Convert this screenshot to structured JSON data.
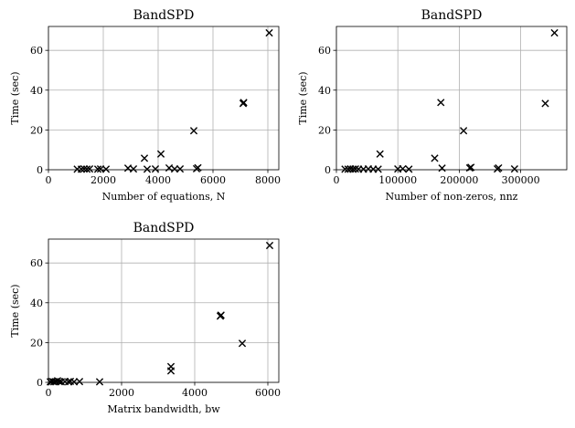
{
  "chart_data": [
    {
      "type": "scatter",
      "title": "BandSPD",
      "xlabel": "Number of equations, N",
      "ylabel": "Time (sec)",
      "xlim": [
        0,
        8400
      ],
      "ylim": [
        0,
        72
      ],
      "xticks": [
        0,
        2000,
        4000,
        6000,
        8000
      ],
      "xtick_labels": [
        "0",
        "2000",
        "4000",
        "6000",
        "8000"
      ],
      "yticks": [
        0,
        20,
        40,
        60
      ],
      "ytick_labels": [
        "0",
        "20",
        "40",
        "60"
      ],
      "grid": true,
      "marker": "x",
      "points": [
        {
          "x": 1050,
          "y": 0.3
        },
        {
          "x": 1200,
          "y": 0.3
        },
        {
          "x": 1300,
          "y": 0.4
        },
        {
          "x": 1400,
          "y": 0.3
        },
        {
          "x": 1500,
          "y": 0.4
        },
        {
          "x": 1800,
          "y": 0.3
        },
        {
          "x": 1900,
          "y": 0.4
        },
        {
          "x": 2100,
          "y": 0.3
        },
        {
          "x": 2900,
          "y": 0.8
        },
        {
          "x": 3100,
          "y": 0.4
        },
        {
          "x": 3500,
          "y": 5.8
        },
        {
          "x": 3600,
          "y": 0.3
        },
        {
          "x": 3900,
          "y": 0.4
        },
        {
          "x": 4100,
          "y": 7.9
        },
        {
          "x": 4400,
          "y": 0.9
        },
        {
          "x": 4600,
          "y": 0.4
        },
        {
          "x": 4800,
          "y": 0.4
        },
        {
          "x": 5300,
          "y": 19.6
        },
        {
          "x": 5400,
          "y": 0.5
        },
        {
          "x": 5450,
          "y": 1.0
        },
        {
          "x": 7100,
          "y": 33.3
        },
        {
          "x": 7120,
          "y": 33.8
        },
        {
          "x": 8050,
          "y": 68.8
        }
      ]
    },
    {
      "type": "scatter",
      "title": "BandSPD",
      "xlabel": "Number of non-zeros, nnz",
      "ylabel": "Time (sec)",
      "xlim": [
        0,
        375000
      ],
      "ylim": [
        0,
        72
      ],
      "xticks": [
        0,
        100000,
        200000,
        300000
      ],
      "xtick_labels": [
        "0",
        "100000",
        "200000",
        "300000"
      ],
      "yticks": [
        0,
        20,
        40,
        60
      ],
      "ytick_labels": [
        "0",
        "20",
        "40",
        "60"
      ],
      "grid": true,
      "marker": "x",
      "points": [
        {
          "x": 14000,
          "y": 0.3
        },
        {
          "x": 19000,
          "y": 0.3
        },
        {
          "x": 23000,
          "y": 0.4
        },
        {
          "x": 27000,
          "y": 0.3
        },
        {
          "x": 31000,
          "y": 0.4
        },
        {
          "x": 36000,
          "y": 0.3
        },
        {
          "x": 44000,
          "y": 0.3
        },
        {
          "x": 52000,
          "y": 0.4
        },
        {
          "x": 60000,
          "y": 0.3
        },
        {
          "x": 68000,
          "y": 0.3
        },
        {
          "x": 71000,
          "y": 7.9
        },
        {
          "x": 100000,
          "y": 0.4
        },
        {
          "x": 108000,
          "y": 0.5
        },
        {
          "x": 118000,
          "y": 0.3
        },
        {
          "x": 160000,
          "y": 5.8
        },
        {
          "x": 170000,
          "y": 33.8
        },
        {
          "x": 172000,
          "y": 0.8
        },
        {
          "x": 207000,
          "y": 19.6
        },
        {
          "x": 217000,
          "y": 0.9
        },
        {
          "x": 219000,
          "y": 1.2
        },
        {
          "x": 262000,
          "y": 0.4
        },
        {
          "x": 264000,
          "y": 0.9
        },
        {
          "x": 290000,
          "y": 0.4
        },
        {
          "x": 340000,
          "y": 33.3
        },
        {
          "x": 355000,
          "y": 68.8
        }
      ]
    },
    {
      "type": "scatter",
      "title": "BandSPD",
      "xlabel": "Matrix bandwidth, bw",
      "ylabel": "Time (sec)",
      "xlim": [
        0,
        6300
      ],
      "ylim": [
        0,
        72
      ],
      "xticks": [
        0,
        2000,
        4000,
        6000
      ],
      "xtick_labels": [
        "0",
        "2000",
        "4000",
        "6000"
      ],
      "yticks": [
        0,
        20,
        40,
        60
      ],
      "ytick_labels": [
        "0",
        "20",
        "40",
        "60"
      ],
      "grid": true,
      "marker": "x",
      "points": [
        {
          "x": 50,
          "y": 0.3
        },
        {
          "x": 100,
          "y": 0.5
        },
        {
          "x": 150,
          "y": 0.3
        },
        {
          "x": 200,
          "y": 0.4
        },
        {
          "x": 250,
          "y": 0.8
        },
        {
          "x": 300,
          "y": 0.4
        },
        {
          "x": 350,
          "y": 0.3
        },
        {
          "x": 450,
          "y": 0.4
        },
        {
          "x": 550,
          "y": 0.3
        },
        {
          "x": 600,
          "y": 0.5
        },
        {
          "x": 700,
          "y": 0.3
        },
        {
          "x": 850,
          "y": 0.4
        },
        {
          "x": 1400,
          "y": 0.3
        },
        {
          "x": 3350,
          "y": 7.9
        },
        {
          "x": 3350,
          "y": 5.8
        },
        {
          "x": 4700,
          "y": 33.3
        },
        {
          "x": 4720,
          "y": 33.8
        },
        {
          "x": 5300,
          "y": 19.6
        },
        {
          "x": 6050,
          "y": 68.8
        }
      ]
    }
  ]
}
